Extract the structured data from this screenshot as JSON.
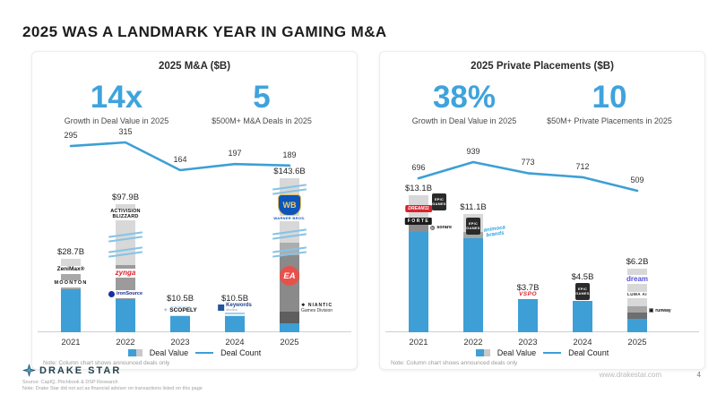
{
  "slide": {
    "title": "2025 WAS A LANDMARK YEAR IN GAMING M&A",
    "footer": {
      "logo_text": "DRAKE STAR",
      "source_line_1": "Source: CapIQ, Pitchbook & DSP Research",
      "source_line_2": "Note: Drake Star did not act as financial adviser on transactions listed on this page",
      "website": "www.drakestar.com",
      "page_number": "4"
    }
  },
  "colors": {
    "accent_blue": "#3FA3DC",
    "bar_blue": "#3D9FD6",
    "bar_gray_light": "#D8D8D8",
    "bar_gray_mid": "#A6A6A6",
    "bar_gray_dark": "#5E5E5E",
    "line_blue": "#3D9FD6",
    "break_mark_blue": "#85C3E8"
  },
  "icons": {
    "scopely_mark": "✦",
    "niantic_mark": "❖",
    "sorare_mark": "◎",
    "runway_mark": "▣"
  },
  "logos": {
    "zenimax": "ZeniMax®",
    "moonton": "MOONTON",
    "activision_1": "ACTIVISION",
    "activision_2": "BLIZZARD",
    "zynga": "zynga",
    "ironsource": "ironSource",
    "scopely": "SCOPELY",
    "keywords": "Keywords",
    "keywords_sub": "studios",
    "wb": "WB",
    "warner_bros": "WARNER BROS.",
    "ea": "EA",
    "niantic": "NIANTIC",
    "niantic_sub": "Games Division",
    "epic_1": "EPIC",
    "epic_2": "GAMES",
    "dream11": "DREAM11",
    "forte": "FORTE",
    "sorare": "sorare",
    "animoca_1": "animoca",
    "animoca_2": "brands",
    "vspo": "VSPO",
    "dream_games": "dream",
    "luma": "LUMA AI",
    "runway": "runway"
  },
  "chart_data": [
    {
      "type": "bar",
      "subtype": "combo-bar-line-with-axis-breaks",
      "title": "2025 M&A ($B)",
      "stats": [
        {
          "value": "14x",
          "label": "Growth in Deal Value in 2025"
        },
        {
          "value": "5",
          "label": "$500M+ M&A Deals in 2025"
        }
      ],
      "categories": [
        "2021",
        "2022",
        "2023",
        "2024",
        "2025"
      ],
      "series": [
        {
          "name": "Deal Value",
          "type": "bar",
          "unit": "$B",
          "values": [
            28.7,
            97.9,
            10.5,
            10.5,
            143.6
          ],
          "labels": [
            "$28.7B",
            "$97.9B",
            "$10.5B",
            "$10.5B",
            "$143.6B"
          ]
        },
        {
          "name": "Deal Count",
          "type": "line",
          "values": [
            295,
            315,
            164,
            197,
            189
          ]
        }
      ],
      "legend": [
        "Deal Value",
        "Deal Count"
      ],
      "note": "Note: Column chart shows announced deals only",
      "bar_logos": [
        [
          "ZeniMax",
          "MOONTON"
        ],
        [
          "Activision Blizzard",
          "zynga",
          "ironSource"
        ],
        [
          "Scopely"
        ],
        [
          "Keywords Studios"
        ],
        [
          "Warner Bros.",
          "EA",
          "Niantic Games Division"
        ]
      ]
    },
    {
      "type": "bar",
      "subtype": "combo-bar-line-with-axis-breaks",
      "title": "2025 Private Placements ($B)",
      "stats": [
        {
          "value": "38%",
          "label": "Growth in Deal Value in 2025"
        },
        {
          "value": "10",
          "label": "$50M+ Private Placements in 2025"
        }
      ],
      "categories": [
        "2021",
        "2022",
        "2023",
        "2024",
        "2025"
      ],
      "series": [
        {
          "name": "Deal Value",
          "type": "bar",
          "unit": "$B",
          "values": [
            13.1,
            11.1,
            3.7,
            4.5,
            6.2
          ],
          "labels": [
            "$13.1B",
            "$11.1B",
            "$3.7B",
            "$4.5B",
            "$6.2B"
          ]
        },
        {
          "name": "Deal Count",
          "type": "line",
          "values": [
            696,
            939,
            773,
            712,
            509
          ]
        }
      ],
      "legend": [
        "Deal Value",
        "Deal Count"
      ],
      "note": "Note: Column chart shows announced deals only",
      "bar_logos": [
        [
          "Epic Games",
          "DREAM11",
          "FORTE",
          "sorare"
        ],
        [
          "Epic Games",
          "animoca brands"
        ],
        [
          "VSPO"
        ],
        [
          "Epic Games"
        ],
        [
          "dream",
          "LUMA AI",
          "runway"
        ]
      ]
    }
  ]
}
